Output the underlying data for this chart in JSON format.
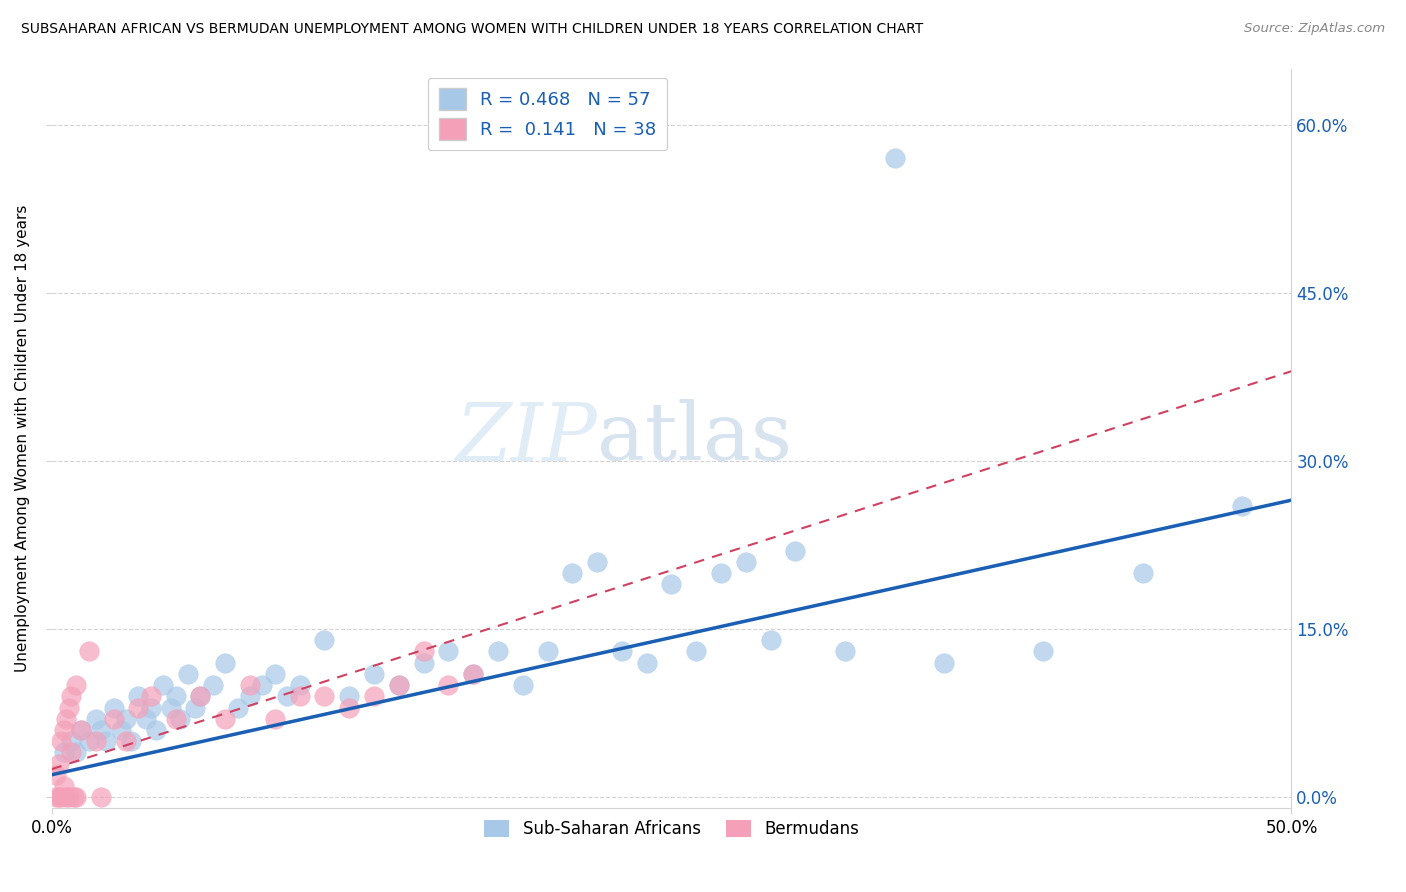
{
  "title": "SUBSAHARAN AFRICAN VS BERMUDAN UNEMPLOYMENT AMONG WOMEN WITH CHILDREN UNDER 18 YEARS CORRELATION CHART",
  "source": "Source: ZipAtlas.com",
  "ylabel": "Unemployment Among Women with Children Under 18 years",
  "xlim": [
    0,
    0.5
  ],
  "ylim": [
    -0.01,
    0.65
  ],
  "xticks": [
    0.0,
    0.5
  ],
  "yticks": [
    0.0,
    0.15,
    0.3,
    0.45,
    0.6
  ],
  "xtick_labels": [
    "0.0%",
    "50.0%"
  ],
  "ytick_labels": [
    "0.0%",
    "15.0%",
    "30.0%",
    "45.0%",
    "60.0%"
  ],
  "legend_labels": [
    "Sub-Saharan Africans",
    "Bermudans"
  ],
  "R_blue": "0.468",
  "N_blue": "57",
  "R_pink": "0.141",
  "N_pink": "38",
  "blue_color": "#a8c8e8",
  "pink_color": "#f4a0b8",
  "line_blue": "#1a5fb4",
  "line_pink": "#d04060",
  "blue_x": [
    0.005,
    0.008,
    0.01,
    0.012,
    0.015,
    0.018,
    0.02,
    0.022,
    0.025,
    0.028,
    0.03,
    0.032,
    0.035,
    0.038,
    0.04,
    0.042,
    0.045,
    0.048,
    0.05,
    0.052,
    0.055,
    0.058,
    0.06,
    0.065,
    0.07,
    0.075,
    0.08,
    0.085,
    0.09,
    0.095,
    0.1,
    0.11,
    0.12,
    0.13,
    0.14,
    0.15,
    0.16,
    0.17,
    0.18,
    0.19,
    0.2,
    0.21,
    0.22,
    0.23,
    0.24,
    0.25,
    0.26,
    0.27,
    0.28,
    0.29,
    0.3,
    0.32,
    0.34,
    0.36,
    0.4,
    0.44,
    0.48
  ],
  "blue_y": [
    0.04,
    0.05,
    0.04,
    0.06,
    0.05,
    0.07,
    0.06,
    0.05,
    0.08,
    0.06,
    0.07,
    0.05,
    0.09,
    0.07,
    0.08,
    0.06,
    0.1,
    0.08,
    0.09,
    0.07,
    0.11,
    0.08,
    0.09,
    0.1,
    0.12,
    0.08,
    0.09,
    0.1,
    0.11,
    0.09,
    0.1,
    0.14,
    0.09,
    0.11,
    0.1,
    0.12,
    0.13,
    0.11,
    0.13,
    0.1,
    0.13,
    0.2,
    0.21,
    0.13,
    0.12,
    0.19,
    0.13,
    0.2,
    0.21,
    0.14,
    0.22,
    0.13,
    0.57,
    0.12,
    0.13,
    0.2,
    0.26
  ],
  "pink_x": [
    0.002,
    0.002,
    0.003,
    0.003,
    0.004,
    0.004,
    0.005,
    0.005,
    0.006,
    0.006,
    0.007,
    0.007,
    0.008,
    0.008,
    0.009,
    0.01,
    0.01,
    0.012,
    0.015,
    0.018,
    0.02,
    0.025,
    0.03,
    0.035,
    0.04,
    0.05,
    0.06,
    0.07,
    0.08,
    0.09,
    0.1,
    0.11,
    0.12,
    0.13,
    0.14,
    0.15,
    0.16,
    0.17
  ],
  "pink_y": [
    0.0,
    0.02,
    0.0,
    0.03,
    0.0,
    0.05,
    0.01,
    0.06,
    0.0,
    0.07,
    0.0,
    0.08,
    0.04,
    0.09,
    0.0,
    0.0,
    0.1,
    0.06,
    0.13,
    0.05,
    0.0,
    0.07,
    0.05,
    0.08,
    0.09,
    0.07,
    0.09,
    0.07,
    0.1,
    0.07,
    0.09,
    0.09,
    0.08,
    0.09,
    0.1,
    0.13,
    0.1,
    0.11
  ]
}
